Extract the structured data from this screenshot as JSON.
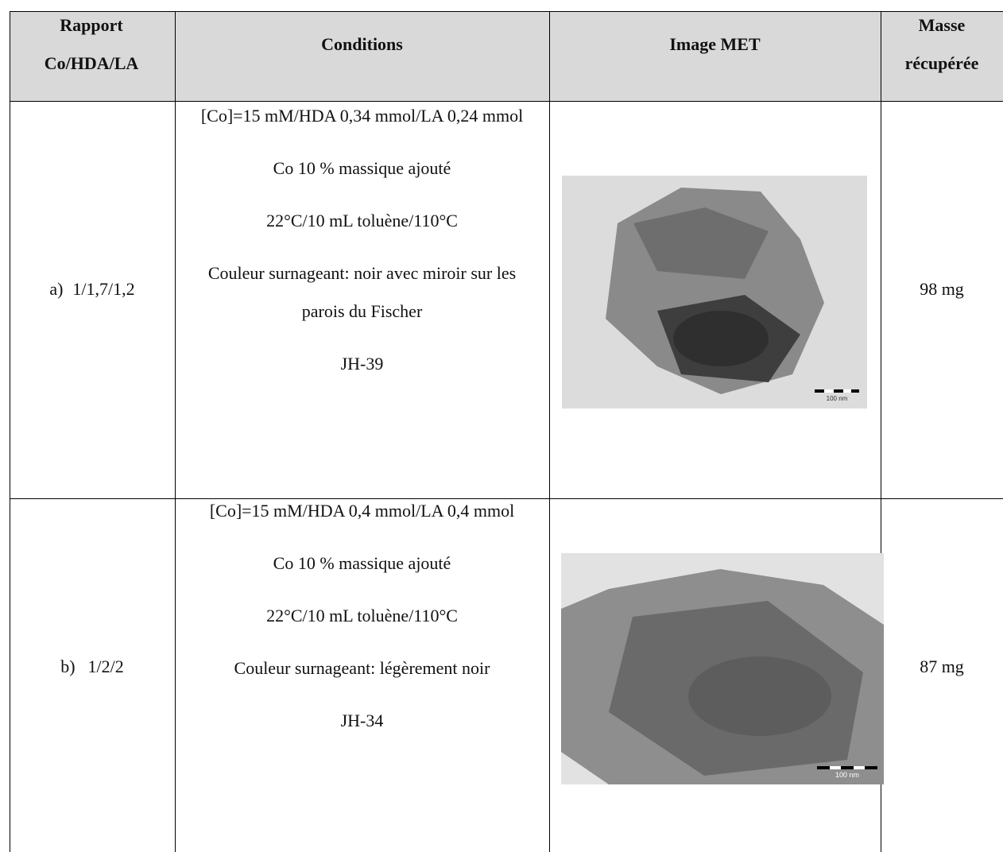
{
  "table": {
    "header": [
      "Rapport Co/HDA/LA",
      "Conditions",
      "Image MET",
      "Masse récupérée"
    ],
    "rows": [
      {
        "label": "a)",
        "ratio": "1/1,7/1,2",
        "conditions": [
          "[Co]=15 mM/HDA 0,34 mmol/LA 0,24 mmol",
          "Co 10 % massique ajouté",
          "22°C/10 mL toluène/110°C",
          "Couleur surnageant: noir avec miroir sur les parois du Fischer",
          "JH-39"
        ],
        "scale_bar": "100 nm",
        "mass": "98 mg"
      },
      {
        "label": "b)",
        "ratio": "1/2/2",
        "conditions": [
          "[Co]=15 mM/HDA 0,4 mmol/LA 0,4 mmol",
          "Co 10 % massique ajouté",
          "22°C/10 mL toluène/110°C",
          "Couleur surnageant: légèrement noir",
          "JH-34"
        ],
        "scale_bar": "100 nm",
        "mass": "87 mg"
      }
    ]
  }
}
